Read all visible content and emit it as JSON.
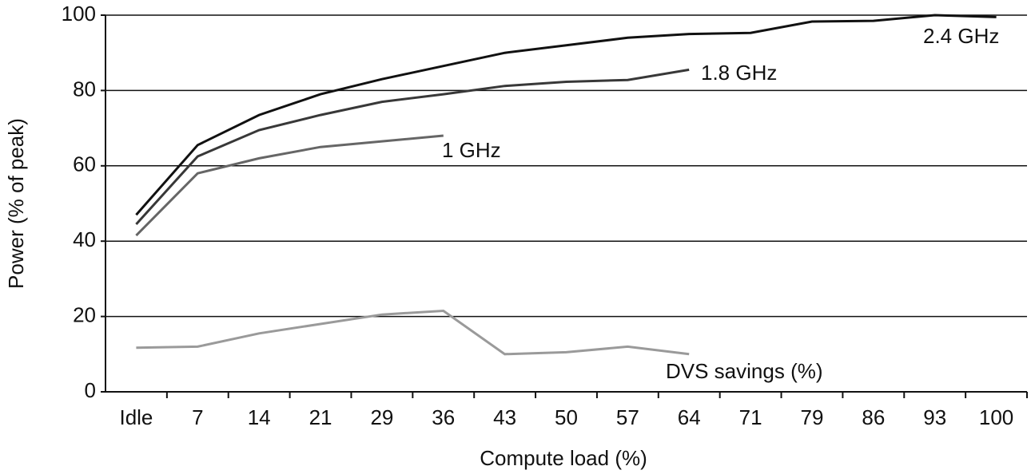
{
  "chart_data": {
    "type": "line",
    "x_label": "Compute load (%)",
    "y_label": "Power (% of peak)",
    "categories": [
      "Idle",
      "7",
      "14",
      "21",
      "29",
      "36",
      "43",
      "50",
      "57",
      "64",
      "71",
      "79",
      "86",
      "93",
      "100"
    ],
    "series": [
      {
        "name": "2.4 GHz",
        "color": "#111111",
        "values": [
          47,
          65.5,
          73.5,
          79,
          83,
          86.5,
          90,
          92,
          94,
          95,
          95.3,
          98.3,
          98.5,
          100,
          99.5
        ]
      },
      {
        "name": "1.8 GHz",
        "color": "#383838",
        "values": [
          44.5,
          62.5,
          69.5,
          73.5,
          77,
          79,
          81.2,
          82.3,
          82.8,
          85.5,
          null,
          null,
          null,
          null,
          null
        ]
      },
      {
        "name": "1 GHz",
        "color": "#666666",
        "values": [
          41.5,
          58,
          62,
          65,
          66.5,
          68,
          null,
          null,
          null,
          null,
          null,
          null,
          null,
          null,
          null
        ]
      },
      {
        "name": "DVS savings (%)",
        "color": "#9a9a9a",
        "values": [
          11.7,
          12,
          15.5,
          18,
          20.5,
          21.5,
          10,
          10.5,
          12,
          10,
          null,
          null,
          null,
          null,
          null
        ]
      }
    ],
    "ylim": [
      0,
      100
    ],
    "yticks": [
      0,
      20,
      40,
      60,
      80,
      100
    ],
    "grid": true
  }
}
